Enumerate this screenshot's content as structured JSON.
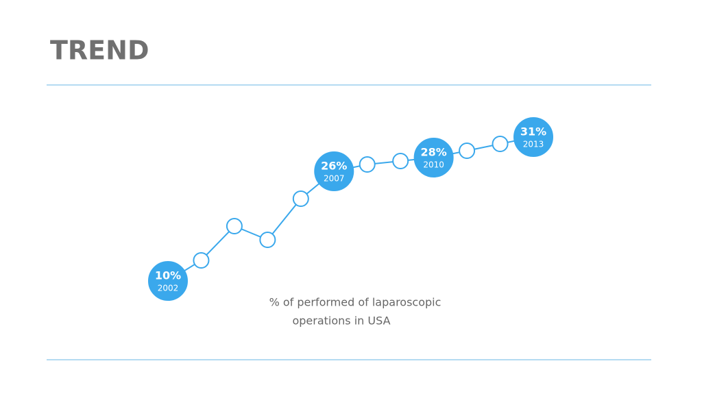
{
  "chart_data": {
    "type": "line",
    "title": "TREND",
    "caption": [
      "% of performed of laparoscopic",
      "operations in USA"
    ],
    "categories": [
      "2002",
      null,
      null,
      null,
      null,
      "2007",
      null,
      null,
      "2010",
      null,
      null,
      "2013"
    ],
    "values": [
      10,
      13,
      18,
      16,
      22,
      26,
      27,
      27.5,
      28,
      29,
      30,
      31
    ],
    "value_labels": [
      "10%",
      null,
      null,
      null,
      null,
      "26%",
      null,
      null,
      "28%",
      null,
      null,
      "31%"
    ],
    "color": "#3aa8ec"
  }
}
